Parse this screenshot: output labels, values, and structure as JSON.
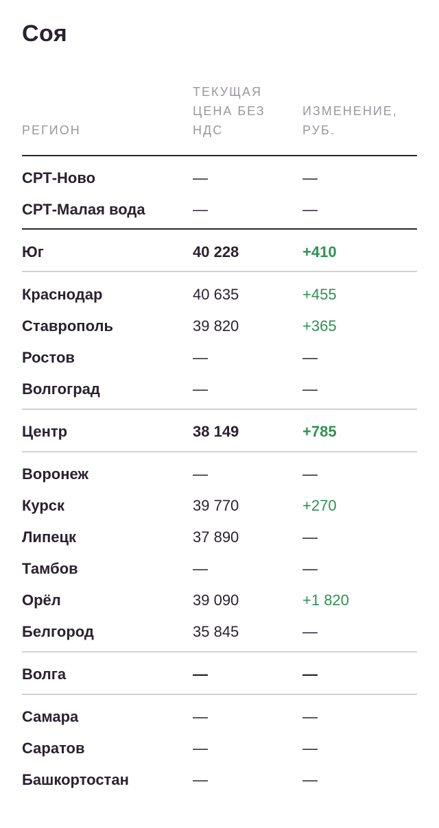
{
  "title": "Соя",
  "headers": {
    "region": "РЕГИОН",
    "price": "ТЕКУЩАЯ ЦЕНА БЕЗ НДС",
    "change": "ИЗМЕНЕНИЕ, РУБ."
  },
  "rows": [
    {
      "name": "СРТ-Ново",
      "price": "—",
      "change": "—"
    },
    {
      "name": "СРТ-Малая вода",
      "price": "—",
      "change": "—"
    },
    {
      "name": "Юг",
      "price": "40 228",
      "change": "+410"
    },
    {
      "name": "Краснодар",
      "price": "40 635",
      "change": "+455"
    },
    {
      "name": "Ставрополь",
      "price": "39 820",
      "change": "+365"
    },
    {
      "name": "Ростов",
      "price": "—",
      "change": "—"
    },
    {
      "name": "Волгоград",
      "price": "—",
      "change": "—"
    },
    {
      "name": "Центр",
      "price": "38 149",
      "change": "+785"
    },
    {
      "name": "Воронеж",
      "price": "—",
      "change": "—"
    },
    {
      "name": "Курск",
      "price": "39 770",
      "change": "+270"
    },
    {
      "name": "Липецк",
      "price": "37 890",
      "change": "—"
    },
    {
      "name": "Тамбов",
      "price": "—",
      "change": "—"
    },
    {
      "name": "Орёл",
      "price": "39 090",
      "change": "+1 820"
    },
    {
      "name": "Белгород",
      "price": "35 845",
      "change": "—"
    },
    {
      "name": "Волга",
      "price": "—",
      "change": "—"
    },
    {
      "name": "Самара",
      "price": "—",
      "change": "—"
    },
    {
      "name": "Саратов",
      "price": "—",
      "change": "—"
    },
    {
      "name": "Башкортостан",
      "price": "—",
      "change": "—"
    }
  ],
  "colors": {
    "text": "#2a2230",
    "positive": "#2e9152",
    "muted": "#9a969c",
    "divider": "#d2d0d4"
  }
}
